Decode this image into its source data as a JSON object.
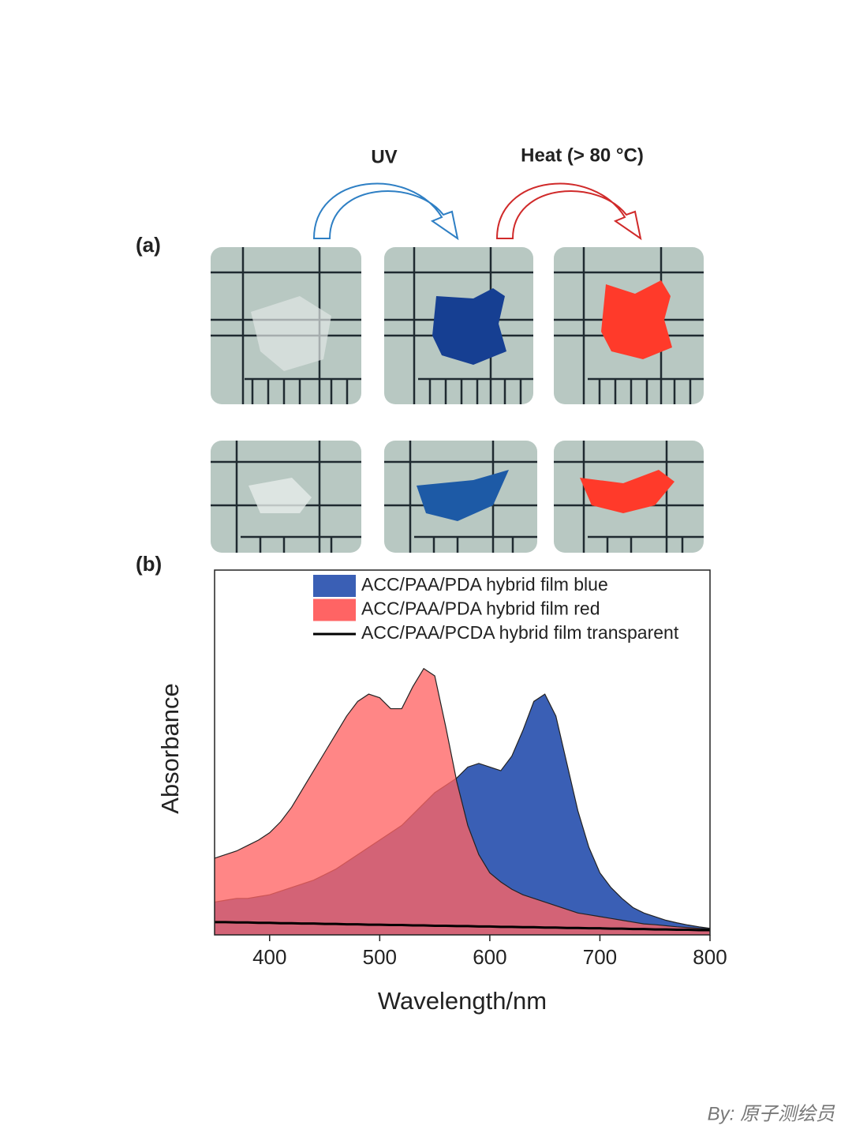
{
  "panel_a_label": "(a)",
  "panel_b_label": "(b)",
  "uv_label": "UV",
  "heat_label": "Heat (> 80 °C)",
  "watermark": "By: 原子测绘员",
  "chart_data": {
    "type": "area",
    "x_label": "Wavelength/nm",
    "y_label": "Absorbance",
    "x": [
      350,
      360,
      370,
      380,
      390,
      400,
      410,
      420,
      430,
      440,
      450,
      460,
      470,
      480,
      490,
      500,
      510,
      520,
      530,
      540,
      550,
      560,
      570,
      580,
      590,
      600,
      610,
      620,
      630,
      640,
      650,
      660,
      670,
      680,
      690,
      700,
      710,
      720,
      730,
      740,
      750,
      760,
      770,
      780,
      790,
      800
    ],
    "series": [
      {
        "name": "ACC/PAA/PDA hybrid film blue",
        "color": "#3a5fb5",
        "fill": true,
        "values": [
          0.09,
          0.095,
          0.1,
          0.1,
          0.105,
          0.11,
          0.12,
          0.13,
          0.14,
          0.15,
          0.165,
          0.18,
          0.2,
          0.22,
          0.24,
          0.26,
          0.28,
          0.3,
          0.33,
          0.36,
          0.39,
          0.41,
          0.43,
          0.46,
          0.47,
          0.46,
          0.45,
          0.49,
          0.56,
          0.64,
          0.66,
          0.6,
          0.47,
          0.34,
          0.24,
          0.17,
          0.13,
          0.1,
          0.075,
          0.06,
          0.05,
          0.04,
          0.033,
          0.027,
          0.022,
          0.018
        ]
      },
      {
        "name": "ACC/PAA/PDA hybrid film red",
        "color": "#ff6464",
        "fill": true,
        "values": [
          0.21,
          0.22,
          0.23,
          0.245,
          0.26,
          0.28,
          0.31,
          0.35,
          0.4,
          0.45,
          0.5,
          0.55,
          0.6,
          0.64,
          0.66,
          0.65,
          0.62,
          0.62,
          0.68,
          0.73,
          0.71,
          0.57,
          0.42,
          0.3,
          0.22,
          0.17,
          0.145,
          0.125,
          0.11,
          0.1,
          0.09,
          0.08,
          0.07,
          0.06,
          0.055,
          0.05,
          0.045,
          0.04,
          0.035,
          0.03,
          0.028,
          0.025,
          0.022,
          0.02,
          0.018,
          0.016
        ]
      },
      {
        "name": "ACC/PAA/PCDA hybrid film transparent",
        "color": "#000000",
        "fill": false,
        "values": [
          0.035,
          0.035,
          0.034,
          0.034,
          0.033,
          0.033,
          0.032,
          0.032,
          0.031,
          0.031,
          0.03,
          0.03,
          0.029,
          0.029,
          0.028,
          0.028,
          0.027,
          0.027,
          0.026,
          0.026,
          0.025,
          0.025,
          0.024,
          0.024,
          0.023,
          0.023,
          0.022,
          0.022,
          0.021,
          0.021,
          0.02,
          0.02,
          0.019,
          0.019,
          0.018,
          0.018,
          0.017,
          0.017,
          0.016,
          0.016,
          0.015,
          0.015,
          0.014,
          0.014,
          0.013,
          0.013
        ]
      }
    ],
    "xlim": [
      350,
      800
    ],
    "ylim": [
      0,
      1
    ],
    "xticks": [
      400,
      500,
      600,
      700,
      800
    ]
  }
}
